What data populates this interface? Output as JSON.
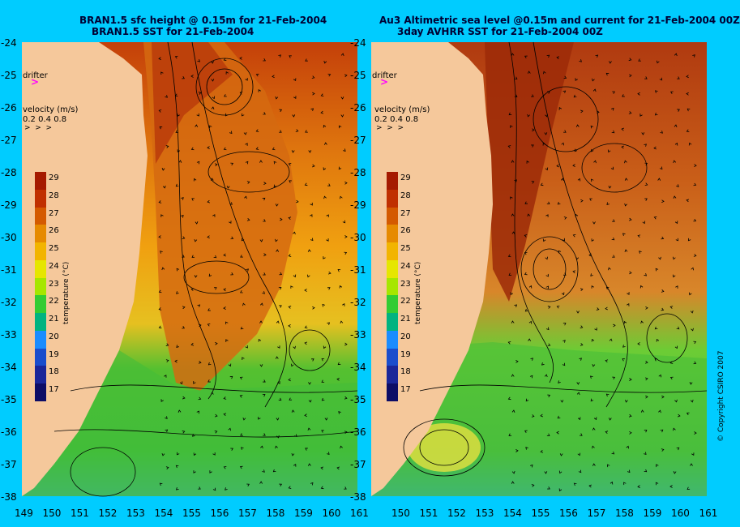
{
  "left_panel": {
    "title_line1": "BRAN1.5 sfc height @ 0.15m for 21-Feb-2004",
    "title_line2": "BRAN1.5 SST for 21-Feb-2004"
  },
  "right_panel": {
    "title_line1": "Au3 Altimetric sea level  @0.15m and current for 21-Feb-2004 00Z",
    "title_line2": "3day AVHRR SST for 21-Feb-2004 00Z"
  },
  "drifter_label": "drifter",
  "velocity_legend": {
    "title": "velocity (m/s)",
    "values": [
      "0.2",
      "0.4",
      "0.8"
    ]
  },
  "colorbar": {
    "label": "temperature (°C)",
    "ticks": [
      "29",
      "28",
      "27",
      "26",
      "25",
      "24",
      "23",
      "22",
      "21",
      "20",
      "19",
      "18",
      "17"
    ],
    "colors": [
      "#a51a00",
      "#c03000",
      "#d45a00",
      "#e68a00",
      "#f2b400",
      "#e6e600",
      "#a6e600",
      "#33cc33",
      "#00b380",
      "#1a8cff",
      "#1a4dcc",
      "#1a2699",
      "#0d0d66"
    ]
  },
  "y_ticks": [
    "-24",
    "-25",
    "-26",
    "-27",
    "-28",
    "-29",
    "-30",
    "-31",
    "-32",
    "-33",
    "-34",
    "-35",
    "-36",
    "-37",
    "-38"
  ],
  "x_ticks_left": [
    "149",
    "150",
    "151",
    "152",
    "153",
    "154",
    "155",
    "156",
    "157",
    "158",
    "159",
    "160",
    "161"
  ],
  "x_ticks_right": [
    "150",
    "151",
    "152",
    "153",
    "154",
    "155",
    "156",
    "157",
    "158",
    "159",
    "160",
    "161"
  ],
  "copyright": "© Copyright CSIRO 2007",
  "colors": {
    "background": "#00ccff",
    "land": "#f5c89b",
    "warm": "#c85a1e",
    "green": "#44bb33",
    "drifter": "#ff00ff"
  }
}
